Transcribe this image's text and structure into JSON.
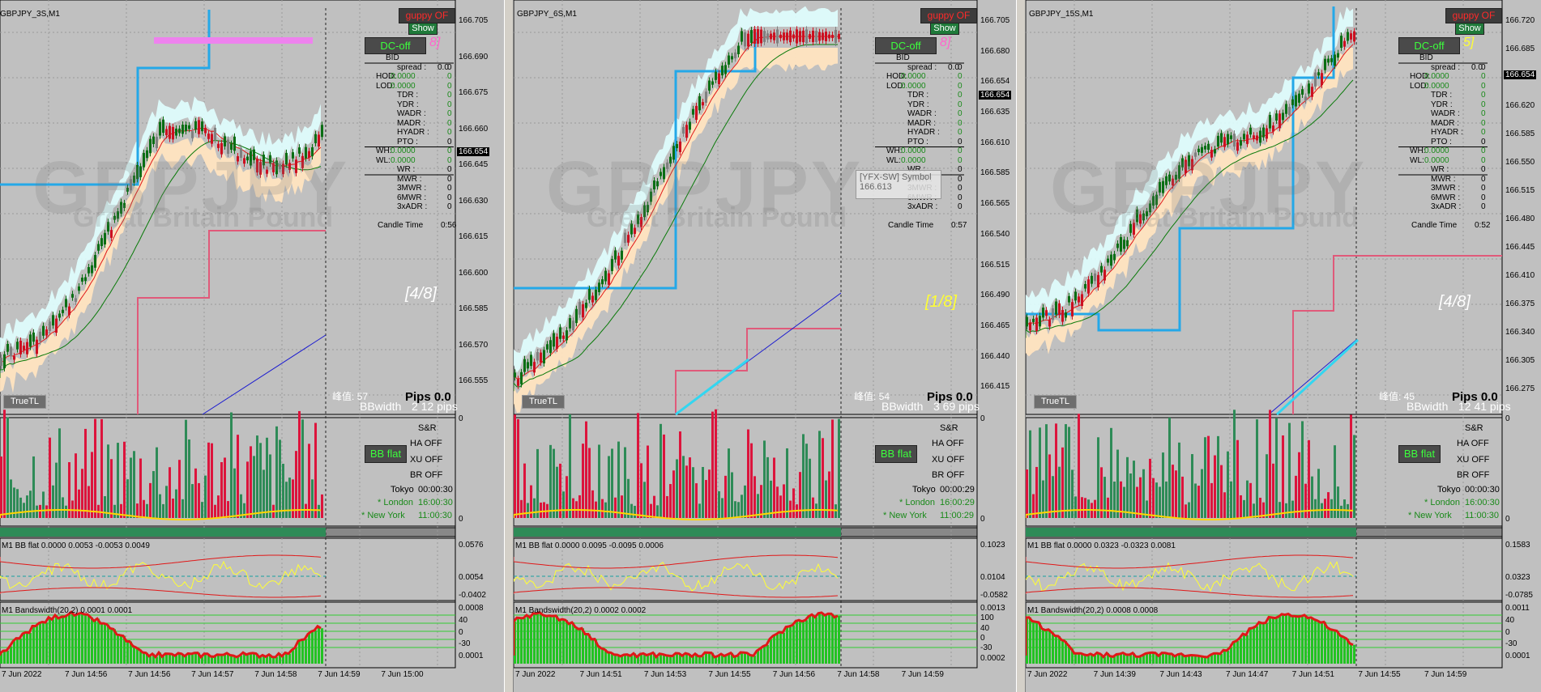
{
  "panels": [
    {
      "title": "GBPJPY_3S,M1",
      "watermark": "GBPJPY",
      "watermark_sub": "Great Britain Pound",
      "price_ticks": [
        "166.705",
        "166.690",
        "166.675",
        "166.660",
        "166.645",
        "166.630",
        "166.615",
        "166.600",
        "166.585",
        "166.570",
        "166.555"
      ],
      "price_tag": "166.654",
      "info": {
        "bid": "BID",
        "spread_label": "spread :",
        "spread": "0.0",
        "hod": "HOD:",
        "hod_v": "0.0000",
        "lod": "LOD:",
        "lod_v": "0.0000",
        "tdr": "TDR :",
        "ydr": "YDR :",
        "wadr": "WADR :",
        "madr": "MADR :",
        "hyadr": "HYADR :",
        "pto": "PTO :",
        "wh": "WH:",
        "wh_v": "0.0000",
        "wl": "WL:",
        "wl_v": "0.0000",
        "wr": "WR :",
        "mwr": "MWR :",
        "mwr3": "3MWR :",
        "mwr6": "6MWR :",
        "adr3": "3xADR :",
        "candle": "Candle Time",
        "candle_v": "0:56"
      },
      "fraction": "[4/8]",
      "fraction_color": "#ffffff",
      "side_frac": "8]",
      "side_frac_color": "#ff66cc",
      "spread_text": "峰值: 57",
      "pips": "Pips 0.0",
      "bbwidth": "BBwidth",
      "bbw_val": "2 12 pips",
      "sr": "S&R",
      "ha": "HA OFF",
      "xu": "XU OFF",
      "br": "BR OFF",
      "tokyo": "Tokyo",
      "tokyo_t": "00:00:30",
      "london": "* London",
      "london_t": "16:00:30",
      "ny": "* New York",
      "ny_t": "11:00:30",
      "ind1_title": "M1 BB flat 0.0000 0.0053 -0.0053 0.0049",
      "ind1_top": "0.0576",
      "ind1_mid": "0.0054",
      "ind1_bot": "-0.0402",
      "ind2_title": "M1 Bandswidth(20,2) 0.0001 0.0001",
      "ind2_ticks": [
        "0.0008",
        "40",
        "0",
        "-30",
        "0.0001"
      ],
      "times": [
        "7 Jun 2022",
        "7 Jun 14:56",
        "7 Jun 14:56",
        "7 Jun 14:57",
        "7 Jun 14:58",
        "7 Jun 14:59",
        "7 Jun 15:00"
      ]
    },
    {
      "title": "GBPJPY_6S,M1",
      "watermark": "GBPJPY",
      "watermark_sub": "Great Britain Pound",
      "price_ticks": [
        "166.705",
        "166.680",
        "166.654",
        "166.635",
        "166.610",
        "166.585",
        "166.565",
        "166.540",
        "166.515",
        "166.490",
        "166.465",
        "166.440",
        "166.415"
      ],
      "price_tag": "166.654",
      "info": {
        "bid": "BID",
        "spread_label": "spread :",
        "spread": "0.0",
        "hod": "HOD:",
        "hod_v": "0.0000",
        "lod": "LOD:",
        "lod_v": "0.0000",
        "tdr": "TDR :",
        "ydr": "YDR :",
        "wadr": "WADR :",
        "madr": "MADR :",
        "hyadr": "HYADR :",
        "pto": "PTO :",
        "wh": "WH:",
        "wh_v": "0.0000",
        "wl": "WL:",
        "wl_v": "0.0000",
        "wr": "WR :",
        "mwr": "MWR :",
        "mwr3": "3MWR :",
        "mwr6": "6MWR :",
        "adr3": "3xADR :",
        "candle": "Candle Time",
        "candle_v": "0:57"
      },
      "fraction": "[1/8]",
      "fraction_color": "#ffff33",
      "side_frac": "8]",
      "side_frac_color": "#ff66cc",
      "spread_text": "峰值: 54",
      "pips": "Pips 0.0",
      "bbwidth": "BBwidth",
      "bbw_val": "3 69 pips",
      "sr": "S&R",
      "ha": "HA OFF",
      "xu": "XU OFF",
      "br": "BR OFF",
      "tokyo": "Tokyo",
      "tokyo_t": "00:00:29",
      "london": "* London",
      "london_t": "16:00:29",
      "ny": "* New York",
      "ny_t": "11:00:29",
      "ind1_title": "M1 BB flat 0.0000 0.0095 -0.0095 0.0006",
      "ind1_top": "0.1023",
      "ind1_mid": "0.0104",
      "ind1_bot": "-0.0582",
      "ind2_title": "M1 Bandswidth(20,2) 0.0002 0.0002",
      "ind2_ticks": [
        "0.0013",
        "100",
        "40",
        "0",
        "-30",
        "0.0002"
      ],
      "times": [
        "7 Jun 2022",
        "7 Jun 14:51",
        "7 Jun 14:53",
        "7 Jun 14:55",
        "7 Jun 14:56",
        "7 Jun 14:58",
        "7 Jun 14:59"
      ],
      "tooltip_title": "[YFX-SW] Symbol",
      "tooltip_value": "166.613"
    },
    {
      "title": "GBPJPY_15S,M1",
      "watermark": "GBPJPY",
      "watermark_sub": "Great Britain Pound",
      "price_ticks": [
        "166.720",
        "166.685",
        "166.654",
        "166.620",
        "166.585",
        "166.550",
        "166.515",
        "166.480",
        "166.445",
        "166.410",
        "166.375",
        "166.340",
        "166.305",
        "166.275"
      ],
      "price_tag": "166.654",
      "info": {
        "bid": "BID",
        "spread_label": "spread :",
        "spread": "0.0",
        "hod": "HOD:",
        "hod_v": "0.0000",
        "lod": "LOD:",
        "lod_v": "0.0000",
        "tdr": "TDR :",
        "ydr": "YDR :",
        "wadr": "WADR :",
        "madr": "MADR :",
        "hyadr": "HYADR :",
        "pto": "PTO :",
        "wh": "WH:",
        "wh_v": "0.0000",
        "wl": "WL:",
        "wl_v": "0.0000",
        "wr": "WR :",
        "mwr": "MWR :",
        "mwr3": "3MWR :",
        "mwr6": "6MWR :",
        "adr3": "3xADR :",
        "candle": "Candle Time",
        "candle_v": "0:52"
      },
      "fraction": "[4/8]",
      "fraction_color": "#ffffff",
      "side_frac": "5]",
      "side_frac_color": "#ffff33",
      "spread_text": "峰值: 45",
      "pips": "Pips 0.0",
      "bbwidth": "BBwidth",
      "bbw_val": "12 41 pips",
      "sr": "S&R",
      "ha": "HA OFF",
      "xu": "XU OFF",
      "br": "BR OFF",
      "tokyo": "Tokyo",
      "tokyo_t": "00:00:30",
      "london": "* London",
      "london_t": "16:00:30",
      "ny": "* New York",
      "ny_t": "11:00:30",
      "ind1_title": "M1 BB flat 0.0000 0.0323 -0.0323 0.0081",
      "ind1_top": "0.1583",
      "ind1_mid": "0.0323",
      "ind1_bot": "-0.0785",
      "ind2_title": "M1 Bandswidth(20,2) 0.0008 0.0008",
      "ind2_ticks": [
        "0.0011",
        "40",
        "0",
        "-30",
        "0.0001"
      ],
      "times": [
        "7 Jun 2022",
        "7 Jun 14:39",
        "7 Jun 14:43",
        "7 Jun 14:47",
        "7 Jun 14:51",
        "7 Jun 14:55",
        "7 Jun 14:59"
      ]
    }
  ],
  "buttons": {
    "guppy": "guppy OF",
    "show": "Show",
    "dcoff": "DC-off",
    "bbflat": "BB flat",
    "truetl": "TrueTL"
  },
  "colors": {
    "bull": "#0a6e14",
    "bear": "#cc1020",
    "ema_red": "#e01818",
    "ema_green": "#0a7a0a",
    "blue_line": "#24a8e8",
    "pink_line": "#e05a7a",
    "cloud_cyan": "#e0ffff",
    "cloud_peach": "#ffe4c0",
    "vol_green": "#2e8b57",
    "vol_red": "#dc143c",
    "bw_green": "#22c322"
  }
}
